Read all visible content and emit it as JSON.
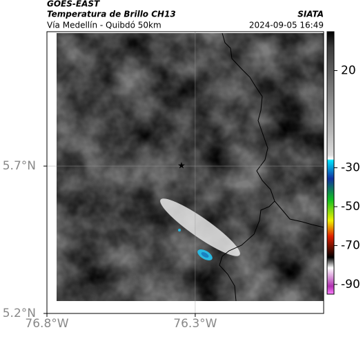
{
  "header": {
    "title": "GOES-EAST",
    "subtitle": "Temperatura de Brillo CH13",
    "region": "Vía Medellín - Quibdó 50km",
    "source": "SIATA",
    "timestamp": "2024-09-05 16:49"
  },
  "map": {
    "xlim": [
      -76.8,
      -75.867
    ],
    "ylim": [
      5.2,
      6.156
    ],
    "xticks": [
      {
        "value": -76.8,
        "label": "76.8°W"
      },
      {
        "value": -76.3,
        "label": "76.3°W"
      }
    ],
    "yticks": [
      {
        "value": 5.2,
        "label": "5.2°N"
      },
      {
        "value": 5.7,
        "label": "5.7°N"
      }
    ],
    "grid": true
  },
  "colorbar": {
    "clim": [
      40,
      -95
    ],
    "ticks": [
      20,
      -30,
      -50,
      -70,
      -90
    ]
  }
}
